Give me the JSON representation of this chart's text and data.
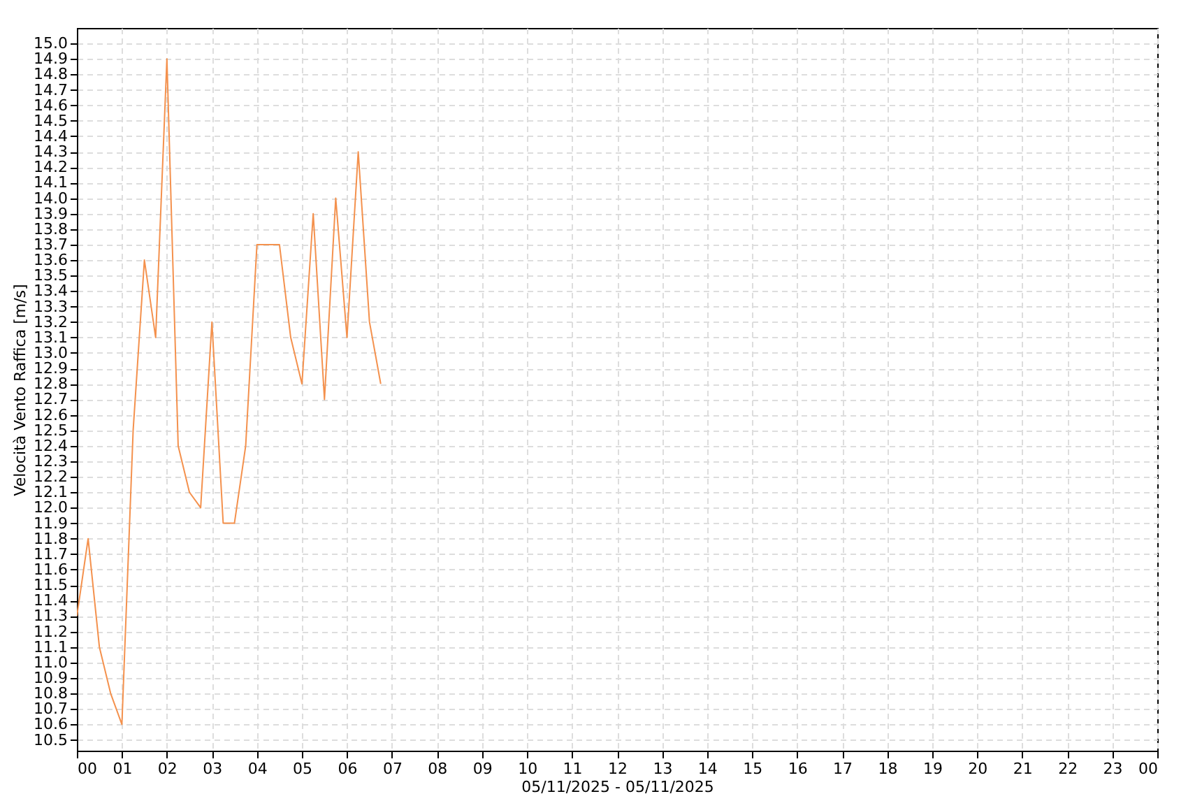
{
  "chart_data": {
    "type": "line",
    "xlabel": "05/11/2025 - 05/11/2025",
    "ylabel": "Velocità Vento Raffica [m/s]",
    "x": [
      0,
      0.25,
      0.5,
      0.75,
      1,
      1.25,
      1.5,
      1.75,
      2,
      2.25,
      2.5,
      2.75,
      3,
      3.25,
      3.5,
      3.75,
      4,
      4.25,
      4.5,
      4.75,
      5,
      5.25,
      5.5,
      5.75,
      6,
      6.25,
      6.5,
      6.75
    ],
    "series": [
      {
        "color": "#f4914d",
        "values": [
          11.3,
          11.8,
          11.1,
          10.8,
          10.6,
          12.5,
          13.6,
          13.1,
          14.9,
          12.4,
          12.1,
          12.0,
          13.2,
          11.9,
          11.9,
          12.4,
          13.7,
          13.7,
          13.7,
          13.1,
          12.8,
          13.9,
          12.7,
          14.0,
          13.1,
          14.3,
          13.2,
          12.8
        ]
      }
    ],
    "xlim": [
      0,
      24
    ],
    "xticks": [
      {
        "value": 0,
        "label": "00"
      },
      {
        "value": 1,
        "label": "01"
      },
      {
        "value": 2,
        "label": "02"
      },
      {
        "value": 3,
        "label": "03"
      },
      {
        "value": 4,
        "label": "04"
      },
      {
        "value": 5,
        "label": "05"
      },
      {
        "value": 6,
        "label": "06"
      },
      {
        "value": 7,
        "label": "07"
      },
      {
        "value": 8,
        "label": "08"
      },
      {
        "value": 9,
        "label": "09"
      },
      {
        "value": 10,
        "label": "10"
      },
      {
        "value": 11,
        "label": "11"
      },
      {
        "value": 12,
        "label": "12"
      },
      {
        "value": 13,
        "label": "13"
      },
      {
        "value": 14,
        "label": "14"
      },
      {
        "value": 15,
        "label": "15"
      },
      {
        "value": 16,
        "label": "16"
      },
      {
        "value": 17,
        "label": "17"
      },
      {
        "value": 18,
        "label": "18"
      },
      {
        "value": 19,
        "label": "19"
      },
      {
        "value": 20,
        "label": "20"
      },
      {
        "value": 21,
        "label": "21"
      },
      {
        "value": 22,
        "label": "22"
      },
      {
        "value": 23,
        "label": "23"
      },
      {
        "value": 24,
        "label": "00"
      }
    ],
    "ylim": [
      10.43,
      15.1
    ],
    "yticks": [
      {
        "value": 10.5,
        "label": "10.5"
      },
      {
        "value": 10.6,
        "label": "10.6"
      },
      {
        "value": 10.7,
        "label": "10.7"
      },
      {
        "value": 10.8,
        "label": "10.8"
      },
      {
        "value": 10.9,
        "label": "10.9"
      },
      {
        "value": 11.0,
        "label": "11.0"
      },
      {
        "value": 11.1,
        "label": "11.1"
      },
      {
        "value": 11.2,
        "label": "11.2"
      },
      {
        "value": 11.3,
        "label": "11.3"
      },
      {
        "value": 11.4,
        "label": "11.4"
      },
      {
        "value": 11.5,
        "label": "11.5"
      },
      {
        "value": 11.6,
        "label": "11.6"
      },
      {
        "value": 11.7,
        "label": "11.7"
      },
      {
        "value": 11.8,
        "label": "11.8"
      },
      {
        "value": 11.9,
        "label": "11.9"
      },
      {
        "value": 12.0,
        "label": "12.0"
      },
      {
        "value": 12.1,
        "label": "12.1"
      },
      {
        "value": 12.2,
        "label": "12.2"
      },
      {
        "value": 12.3,
        "label": "12.3"
      },
      {
        "value": 12.4,
        "label": "12.4"
      },
      {
        "value": 12.5,
        "label": "12.5"
      },
      {
        "value": 12.6,
        "label": "12.6"
      },
      {
        "value": 12.7,
        "label": "12.7"
      },
      {
        "value": 12.8,
        "label": "12.8"
      },
      {
        "value": 12.9,
        "label": "12.9"
      },
      {
        "value": 13.0,
        "label": "13.0"
      },
      {
        "value": 13.1,
        "label": "13.1"
      },
      {
        "value": 13.2,
        "label": "13.2"
      },
      {
        "value": 13.3,
        "label": "13.3"
      },
      {
        "value": 13.4,
        "label": "13.4"
      },
      {
        "value": 13.5,
        "label": "13.5"
      },
      {
        "value": 13.6,
        "label": "13.6"
      },
      {
        "value": 13.7,
        "label": "13.7"
      },
      {
        "value": 13.8,
        "label": "13.8"
      },
      {
        "value": 13.9,
        "label": "13.9"
      },
      {
        "value": 14.0,
        "label": "14.0"
      },
      {
        "value": 14.1,
        "label": "14.1"
      },
      {
        "value": 14.2,
        "label": "14.2"
      },
      {
        "value": 14.3,
        "label": "14.3"
      },
      {
        "value": 14.4,
        "label": "14.4"
      },
      {
        "value": 14.5,
        "label": "14.5"
      },
      {
        "value": 14.6,
        "label": "14.6"
      },
      {
        "value": 14.7,
        "label": "14.7"
      },
      {
        "value": 14.8,
        "label": "14.8"
      },
      {
        "value": 14.9,
        "label": "14.9"
      },
      {
        "value": 15.0,
        "label": "15.0"
      }
    ],
    "grid": true
  }
}
